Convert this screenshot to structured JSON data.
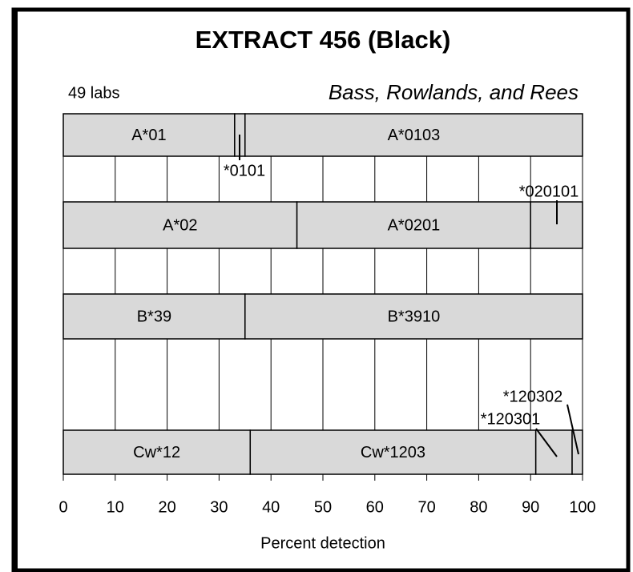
{
  "chart_data": {
    "type": "stacked-horizontal-bar",
    "title": "EXTRACT 456 (Black)",
    "subtitle_left": "49 labs",
    "subtitle_right": "Bass, Rowlands, and Rees",
    "x_label": "Percent detection",
    "xlim": [
      0,
      100
    ],
    "xticks": [
      0,
      10,
      20,
      30,
      40,
      50,
      60,
      70,
      80,
      90,
      100
    ],
    "grid": true,
    "color": "#d9d9d9",
    "bars": [
      {
        "segments": [
          {
            "label": "A*01",
            "value": 33
          },
          {
            "label": "*0101",
            "value": 2
          },
          {
            "label": "A*0103",
            "value": 65
          }
        ]
      },
      {
        "segments": [
          {
            "label": "A*02",
            "value": 45
          },
          {
            "label": "A*0201",
            "value": 45
          },
          {
            "label": "*020101",
            "value": 10
          }
        ]
      },
      {
        "segments": [
          {
            "label": "B*39",
            "value": 35
          },
          {
            "label": "B*3910",
            "value": 65
          }
        ]
      },
      {
        "segments": [
          {
            "label": "Cw*12",
            "value": 36
          },
          {
            "label": "Cw*1203",
            "value": 55
          },
          {
            "label": "*120301",
            "value": 7
          },
          {
            "label": "*120302",
            "value": 2
          }
        ]
      }
    ]
  }
}
